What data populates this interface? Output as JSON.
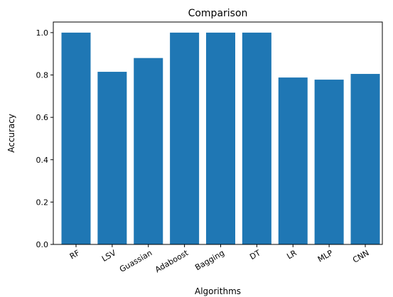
{
  "chart_data": {
    "type": "bar",
    "title": "Comparison",
    "xlabel": "Algorithms",
    "ylabel": "Accuracy",
    "categories": [
      "RF",
      "LSV",
      "Guassian",
      "Adaboost",
      "Bagging",
      "DT",
      "LR",
      "MLP",
      "CNN"
    ],
    "values": [
      1.0,
      0.815,
      0.88,
      1.0,
      1.0,
      1.0,
      0.788,
      0.778,
      0.805
    ],
    "ylim": [
      0,
      1.05
    ],
    "yticks": [
      0.0,
      0.2,
      0.4,
      0.6,
      0.8,
      1.0
    ],
    "ytick_labels": [
      "0.0",
      "0.2",
      "0.4",
      "0.6",
      "0.8",
      "1.0"
    ],
    "bar_color": "#1f77b4",
    "grid": false,
    "legend": "none",
    "xtick_rotation_deg": 30
  }
}
